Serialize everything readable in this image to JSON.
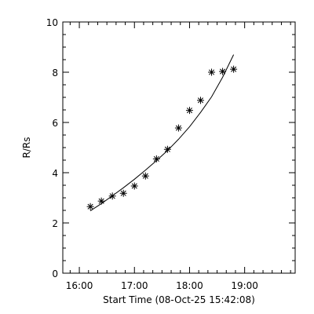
{
  "chart_data": {
    "type": "scatter",
    "xlabel": "Start Time (08-Oct-25 15:42:08)",
    "ylabel": "R/Rs",
    "xlim": [
      "15:42",
      "19:55"
    ],
    "ylim": [
      0,
      10
    ],
    "xticks": [
      {
        "t": "16:00",
        "label": "16:00"
      },
      {
        "t": "17:00",
        "label": "17:00"
      },
      {
        "t": "18:00",
        "label": "18:00"
      },
      {
        "t": "19:00",
        "label": "19:00"
      }
    ],
    "yticks": [
      0,
      2,
      4,
      6,
      8,
      10
    ],
    "grid": false,
    "series": [
      {
        "marker": "asterisk",
        "x": [
          "16:12",
          "16:24",
          "16:36",
          "16:48",
          "17:00",
          "17:12",
          "17:24",
          "17:36",
          "17:48",
          "18:00",
          "18:12",
          "18:24",
          "18:36",
          "18:48"
        ],
        "y": [
          2.65,
          2.87,
          3.07,
          3.18,
          3.47,
          3.87,
          4.55,
          4.93,
          5.78,
          6.48,
          6.88,
          8.0,
          8.03,
          8.12
        ]
      },
      {
        "line": "fit",
        "x": [
          "16:12",
          "16:24",
          "16:36",
          "16:48",
          "17:00",
          "17:12",
          "17:24",
          "17:36",
          "17:48",
          "18:00",
          "18:12",
          "18:24",
          "18:36",
          "18:48"
        ],
        "y": [
          2.48,
          2.77,
          3.08,
          3.4,
          3.74,
          4.1,
          4.48,
          4.88,
          5.33,
          5.83,
          6.4,
          7.02,
          7.8,
          8.7
        ]
      }
    ]
  }
}
